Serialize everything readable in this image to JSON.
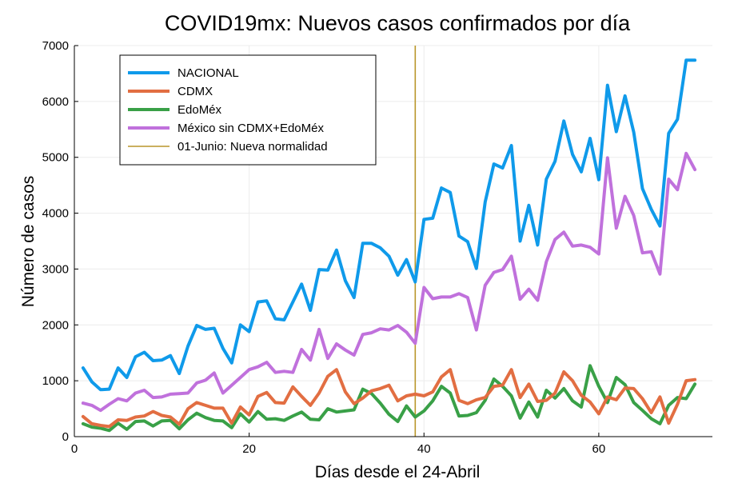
{
  "chart_data": {
    "type": "line",
    "title": "COVID19mx: Nuevos casos confirmados por día",
    "xlabel": "Días desde el 24-Abril",
    "ylabel": "Número de casos",
    "xlim": [
      0,
      73
    ],
    "ylim": [
      0,
      7000
    ],
    "xticks": [
      0,
      20,
      40,
      60
    ],
    "yticks": [
      0,
      1000,
      2000,
      3000,
      4000,
      5000,
      6000,
      7000
    ],
    "grid": true,
    "legend_position": "top-left",
    "x": [
      1,
      2,
      3,
      4,
      5,
      6,
      7,
      8,
      9,
      10,
      11,
      12,
      13,
      14,
      15,
      16,
      17,
      18,
      19,
      20,
      21,
      22,
      23,
      24,
      25,
      26,
      27,
      28,
      29,
      30,
      31,
      32,
      33,
      34,
      35,
      36,
      37,
      38,
      39,
      40,
      41,
      42,
      43,
      44,
      45,
      46,
      47,
      48,
      49,
      50,
      51,
      52,
      53,
      54,
      55,
      56,
      57,
      58,
      59,
      60,
      61,
      62,
      63,
      64,
      65,
      66,
      67,
      68,
      69,
      70,
      71
    ],
    "series": [
      {
        "name": "NACIONAL",
        "color": "#0f9aea",
        "values": [
          1230,
          980,
          840,
          850,
          1230,
          1060,
          1430,
          1510,
          1360,
          1370,
          1450,
          1130,
          1620,
          1990,
          1920,
          1940,
          1580,
          1320,
          2000,
          1880,
          2410,
          2430,
          2110,
          2090,
          2410,
          2730,
          2260,
          2990,
          2980,
          3340,
          2790,
          2490,
          3460,
          3460,
          3380,
          3230,
          2890,
          3170,
          2770,
          3890,
          3910,
          4450,
          4370,
          3590,
          3490,
          3010,
          4200,
          4880,
          4810,
          5210,
          3500,
          4140,
          3430,
          4610,
          4930,
          5650,
          5050,
          4740,
          5340,
          4600,
          6290,
          5460,
          6100,
          5450,
          4440,
          4070,
          3770,
          5430,
          5680,
          6740,
          6740
        ]
      },
      {
        "name": "CDMX",
        "color": "#e26e42",
        "values": [
          360,
          230,
          200,
          180,
          300,
          290,
          350,
          370,
          450,
          380,
          350,
          220,
          500,
          610,
          560,
          510,
          510,
          240,
          530,
          390,
          720,
          790,
          610,
          600,
          890,
          720,
          560,
          780,
          1080,
          1200,
          800,
          590,
          690,
          820,
          860,
          920,
          640,
          730,
          760,
          730,
          800,
          1070,
          1200,
          650,
          590,
          660,
          700,
          900,
          920,
          1200,
          700,
          940,
          630,
          650,
          780,
          1160,
          1000,
          740,
          620,
          410,
          710,
          660,
          870,
          860,
          680,
          430,
          710,
          240,
          580,
          1000,
          1020
        ]
      },
      {
        "name": "EdoMéx",
        "color": "#39a047",
        "values": [
          230,
          170,
          150,
          110,
          240,
          130,
          270,
          280,
          190,
          280,
          290,
          140,
          300,
          420,
          340,
          290,
          280,
          160,
          410,
          260,
          450,
          310,
          320,
          290,
          370,
          440,
          310,
          300,
          500,
          440,
          460,
          480,
          850,
          770,
          600,
          400,
          270,
          550,
          350,
          460,
          640,
          900,
          780,
          370,
          380,
          430,
          650,
          1030,
          900,
          730,
          330,
          620,
          350,
          830,
          690,
          860,
          640,
          530,
          1270,
          900,
          610,
          1060,
          930,
          610,
          470,
          320,
          230,
          560,
          700,
          680,
          940
        ]
      },
      {
        "name": "México sin CDMX+EdoMéx",
        "color": "#c071dc",
        "values": [
          600,
          560,
          470,
          580,
          680,
          640,
          780,
          830,
          700,
          710,
          760,
          770,
          780,
          960,
          1010,
          1140,
          780,
          920,
          1060,
          1200,
          1250,
          1330,
          1150,
          1170,
          1150,
          1560,
          1370,
          1920,
          1400,
          1660,
          1550,
          1460,
          1830,
          1860,
          1930,
          1910,
          1990,
          1870,
          1670,
          2670,
          2470,
          2500,
          2500,
          2560,
          2490,
          1910,
          2710,
          2940,
          2990,
          3230,
          2460,
          2640,
          2440,
          3130,
          3530,
          3660,
          3410,
          3430,
          3390,
          3270,
          4990,
          3730,
          4300,
          3960,
          3290,
          3310,
          2910,
          4610,
          4420,
          5070,
          4780
        ]
      }
    ],
    "annotations": [
      {
        "type": "vline",
        "x": 39,
        "label": "01-Junio: Nueva normalidad",
        "color": "#b9962a"
      }
    ]
  }
}
